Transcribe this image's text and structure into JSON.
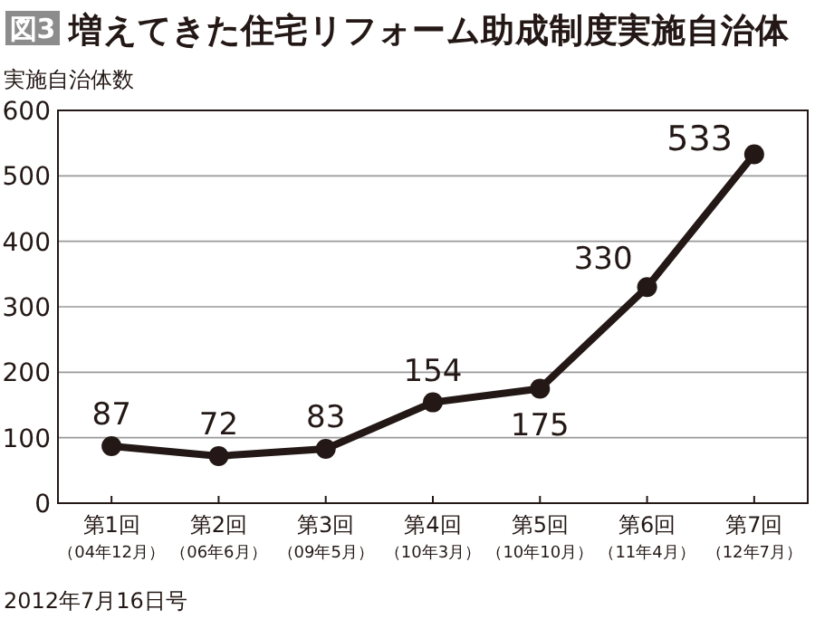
{
  "chart_data": {
    "type": "line",
    "title": "図3 増えてきた住宅リフォーム助成制度実施自治体",
    "ylabel": "実施自治体数",
    "categories": [
      "第1回（04年12月）",
      "第2回（06年6月）",
      "第3回（09年5月）",
      "第4回（10年3月）",
      "第5回（10年10月）",
      "第6回（11年4月）",
      "第7回（12年7月）"
    ],
    "series": [
      {
        "color": "#231815",
        "values": [
          87,
          72,
          83,
          154,
          175,
          330,
          533
        ]
      }
    ],
    "ylim": [
      0,
      600
    ],
    "yticks": [
      0,
      100,
      200,
      300,
      400,
      500,
      600
    ],
    "grid": "y",
    "marker": "circle",
    "line_style": "solid",
    "data_labels": true,
    "annotations": [
      "2012年7月16日号"
    ]
  }
}
